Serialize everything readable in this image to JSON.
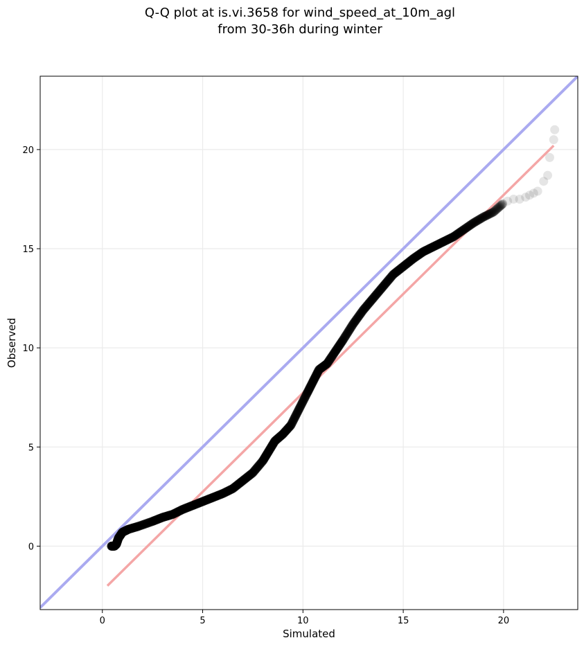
{
  "chart_data": {
    "type": "scatter",
    "title_line1": "Q-Q plot at is.vi.3658 for wind_speed_at_10m_agl",
    "title_line2": "from 30-36h during winter",
    "xlabel": "Simulated",
    "ylabel": "Observed",
    "xlim": [
      -3.1,
      23.7
    ],
    "ylim": [
      -3.2,
      23.7
    ],
    "xticks": [
      0,
      5,
      10,
      15,
      20
    ],
    "yticks": [
      0,
      5,
      10,
      15,
      20
    ],
    "grid": true,
    "colors": {
      "points": "#000000",
      "identity_line": "#aaaaf0",
      "fit_line": "#f4a6a6",
      "grid": "#ebebeb"
    },
    "identity_line": {
      "x": [
        -3.1,
        23.7
      ],
      "y": [
        -3.1,
        23.7
      ]
    },
    "fit_line": {
      "x": [
        0.25,
        22.5
      ],
      "y": [
        -2.0,
        20.2
      ]
    },
    "curve_knots": [
      [
        0.45,
        0.0
      ],
      [
        0.6,
        0.0
      ],
      [
        0.7,
        0.1
      ],
      [
        0.8,
        0.4
      ],
      [
        1.0,
        0.7
      ],
      [
        1.3,
        0.85
      ],
      [
        1.8,
        1.0
      ],
      [
        2.5,
        1.25
      ],
      [
        3.0,
        1.45
      ],
      [
        3.5,
        1.6
      ],
      [
        4.0,
        1.85
      ],
      [
        4.5,
        2.05
      ],
      [
        5.0,
        2.25
      ],
      [
        5.5,
        2.45
      ],
      [
        6.0,
        2.65
      ],
      [
        6.5,
        2.9
      ],
      [
        7.0,
        3.3
      ],
      [
        7.5,
        3.7
      ],
      [
        8.0,
        4.3
      ],
      [
        8.3,
        4.8
      ],
      [
        8.6,
        5.3
      ],
      [
        9.0,
        5.65
      ],
      [
        9.4,
        6.1
      ],
      [
        9.8,
        6.9
      ],
      [
        10.2,
        7.7
      ],
      [
        10.5,
        8.3
      ],
      [
        10.8,
        8.9
      ],
      [
        11.2,
        9.2
      ],
      [
        11.6,
        9.8
      ],
      [
        12.0,
        10.4
      ],
      [
        12.5,
        11.2
      ],
      [
        13.0,
        11.9
      ],
      [
        13.5,
        12.5
      ],
      [
        14.0,
        13.1
      ],
      [
        14.5,
        13.7
      ],
      [
        15.0,
        14.1
      ],
      [
        15.5,
        14.5
      ],
      [
        16.0,
        14.85
      ],
      [
        16.5,
        15.1
      ],
      [
        17.0,
        15.35
      ],
      [
        17.5,
        15.6
      ],
      [
        18.0,
        15.95
      ],
      [
        18.5,
        16.3
      ],
      [
        19.0,
        16.6
      ],
      [
        19.5,
        16.85
      ],
      [
        20.0,
        17.3
      ]
    ],
    "tail_points": [
      [
        20.2,
        17.4
      ],
      [
        20.5,
        17.5
      ],
      [
        20.8,
        17.5
      ],
      [
        21.1,
        17.6
      ],
      [
        21.3,
        17.7
      ],
      [
        21.5,
        17.8
      ],
      [
        21.7,
        17.9
      ],
      [
        22.0,
        18.4
      ],
      [
        22.2,
        18.7
      ],
      [
        22.3,
        19.6
      ],
      [
        22.5,
        20.5
      ],
      [
        22.55,
        21.0
      ]
    ]
  }
}
